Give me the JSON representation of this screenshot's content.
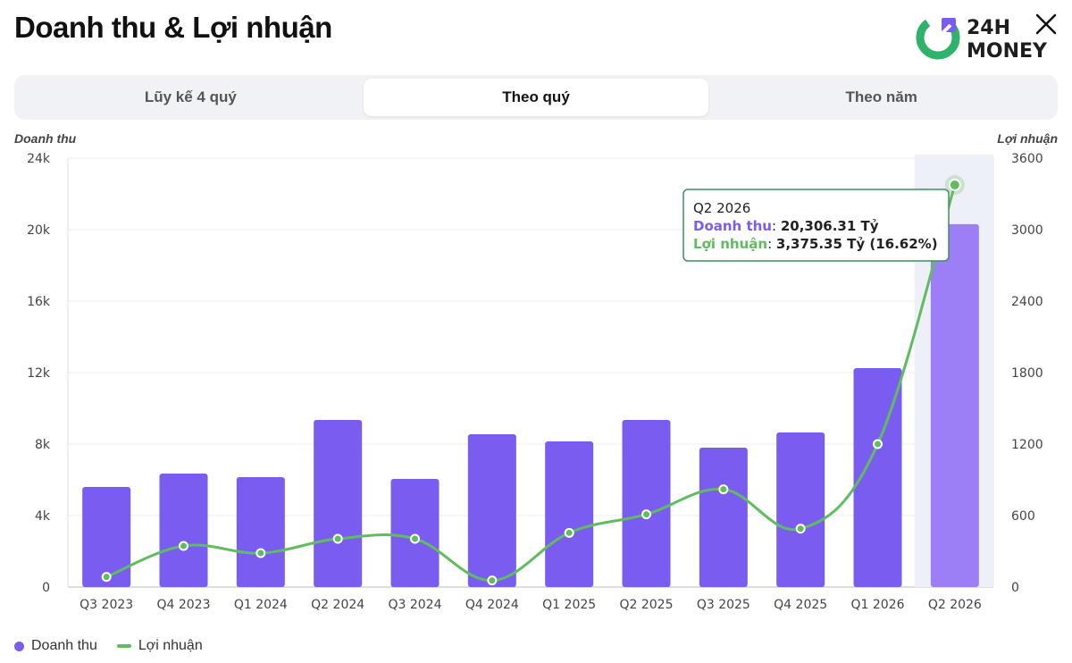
{
  "header": {
    "title": "Doanh thu & Lợi nhuận",
    "logo_line1": "24H",
    "logo_line2": "MONEY"
  },
  "tabs": [
    {
      "label": "Lũy kế 4 quý",
      "active": false
    },
    {
      "label": "Theo quý",
      "active": true
    },
    {
      "label": "Theo năm",
      "active": false
    }
  ],
  "icons": {
    "close": "close-icon",
    "logo": "24h-money-logo"
  },
  "colors": {
    "bar": "#7b5cf0",
    "bar_highlight": "#9c7ff6",
    "line": "#5fbd5f",
    "tooltip_border": "#3f8f5f"
  },
  "chart_data": {
    "type": "bar+line",
    "categories": [
      "Q3 2023",
      "Q4 2023",
      "Q1 2024",
      "Q2 2024",
      "Q3 2024",
      "Q4 2024",
      "Q1 2025",
      "Q2 2025",
      "Q3 2025",
      "Q4 2025",
      "Q1 2026",
      "Q2 2026"
    ],
    "series": [
      {
        "name": "Doanh thu",
        "type": "bar",
        "axis": "left",
        "values": [
          5600,
          6350,
          6150,
          9350,
          6050,
          8550,
          8150,
          9350,
          7800,
          8650,
          12250,
          20306.31
        ]
      },
      {
        "name": "Lợi nhuận",
        "type": "line",
        "axis": "right",
        "values": [
          85,
          345,
          285,
          405,
          405,
          55,
          455,
          610,
          820,
          490,
          1200,
          3375.35
        ]
      }
    ],
    "ylabel_left": "Doanh thu",
    "ylabel_right": "Lợi nhuận",
    "ylim_left": [
      0,
      24000
    ],
    "ylim_right": [
      0,
      3600
    ],
    "yticks_left": [
      "0",
      "4k",
      "8k",
      "12k",
      "16k",
      "20k",
      "24k"
    ],
    "yticks_right": [
      "0",
      "600",
      "1200",
      "1800",
      "2400",
      "3000",
      "3600"
    ],
    "grid": true,
    "legend": "bottom-left",
    "highlight_index": 11,
    "tooltip": {
      "title": "Q2 2026",
      "rev_label": "Doanh thu",
      "rev_value": "20,306.31 Tỷ",
      "profit_label": "Lợi nhuận",
      "profit_value": "3,375.35 Tỷ (16.62%)"
    }
  }
}
